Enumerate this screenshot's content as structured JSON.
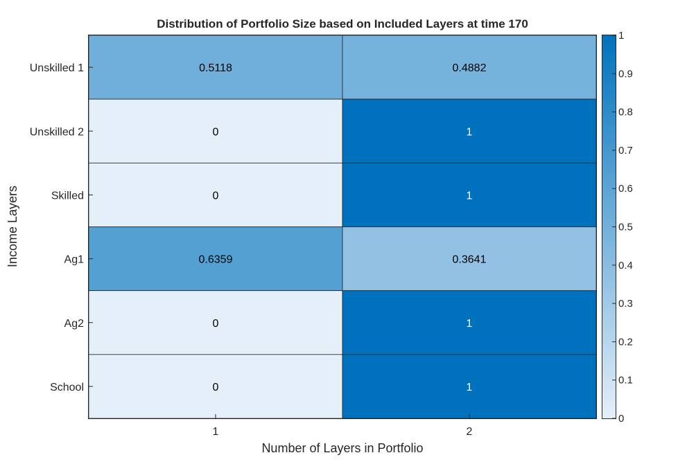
{
  "chart_data": {
    "type": "heatmap",
    "title": "Distribution of Portfolio Size based on Included Layers at time 170",
    "xlabel": "Number of Layers in Portfolio",
    "ylabel": "Income Layers",
    "x_categories": [
      "1",
      "2"
    ],
    "y_categories": [
      "Unskilled 1",
      "Unskilled 2",
      "Skilled",
      "Ag1",
      "Ag2",
      "School"
    ],
    "values": [
      [
        0.5118,
        0.4882
      ],
      [
        0,
        1
      ],
      [
        0,
        1
      ],
      [
        0.6359,
        0.3641
      ],
      [
        0,
        1
      ],
      [
        0,
        1
      ]
    ],
    "cell_labels": [
      [
        "0.5118",
        "0.4882"
      ],
      [
        "0",
        "1"
      ],
      [
        "0",
        "1"
      ],
      [
        "0.6359",
        "0.3641"
      ],
      [
        "0",
        "1"
      ],
      [
        "0",
        "1"
      ]
    ],
    "color_range": [
      0,
      1
    ],
    "colormap": {
      "low": "#e5eff9",
      "high": "#0072bd"
    },
    "colorbar_ticks": [
      "0",
      "0.1",
      "0.2",
      "0.3",
      "0.4",
      "0.5",
      "0.6",
      "0.7",
      "0.8",
      "0.9",
      "1"
    ],
    "colorbar_placement": "right",
    "grid": false
  }
}
